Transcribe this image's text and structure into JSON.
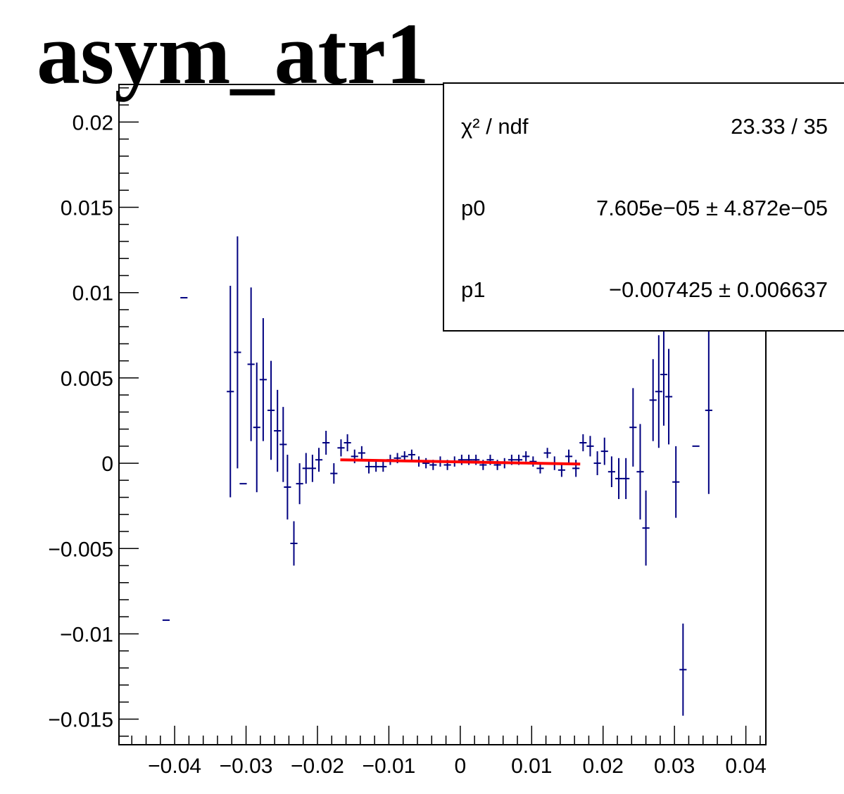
{
  "chart_data": {
    "type": "scatter",
    "title": "asym_atr1",
    "xlabel": "",
    "ylabel": "",
    "xlim": [
      -0.0478,
      0.0428
    ],
    "ylim": [
      -0.0165,
      0.0222
    ],
    "x_ticks": [
      -0.04,
      -0.03,
      -0.02,
      -0.01,
      0,
      0.01,
      0.02,
      0.03,
      0.04
    ],
    "x_tick_labels": [
      "−0.04",
      "−0.03",
      "−0.02",
      "−0.01",
      "0",
      "0.01",
      "0.02",
      "0.03",
      "0.04"
    ],
    "y_ticks": [
      -0.015,
      -0.01,
      -0.005,
      0,
      0.005,
      0.01,
      0.015,
      0.02
    ],
    "y_tick_labels": [
      "−0.015",
      "−0.01",
      "−0.005",
      "0",
      "0.005",
      "0.01",
      "0.015",
      "0.02"
    ],
    "bin_width": 0.001,
    "grid": false,
    "colors": {
      "points": "#000080",
      "fit": "#ff0000",
      "axes": "#000000",
      "background": "#ffffff"
    },
    "series": [
      {
        "points": [
          {
            "x": -0.0412,
            "y": -0.0092,
            "ey": 0
          },
          {
            "x": -0.0387,
            "y": 0.0097,
            "ey": 0
          },
          {
            "x": -0.0322,
            "y": 0.0042,
            "ey": 0.0062
          },
          {
            "x": -0.0312,
            "y": 0.0065,
            "ey": 0.0068
          },
          {
            "x": -0.0304,
            "y": -0.0012,
            "ey": 0
          },
          {
            "x": -0.0293,
            "y": 0.0058,
            "ey": 0.0045
          },
          {
            "x": -0.0285,
            "y": 0.0021,
            "ey": 0.0038
          },
          {
            "x": -0.0276,
            "y": 0.0049,
            "ey": 0.0036
          },
          {
            "x": -0.0265,
            "y": 0.0031,
            "ey": 0.0029
          },
          {
            "x": -0.0256,
            "y": 0.0019,
            "ey": 0.0024
          },
          {
            "x": -0.0248,
            "y": 0.0011,
            "ey": 0.0022
          },
          {
            "x": -0.0242,
            "y": -0.0014,
            "ey": 0.0019
          },
          {
            "x": -0.0233,
            "y": -0.0047,
            "ey": 0.0013
          },
          {
            "x": -0.0225,
            "y": -0.0012,
            "ey": 0.0012
          },
          {
            "x": -0.0216,
            "y": -0.0003,
            "ey": 0.0009
          },
          {
            "x": -0.0207,
            "y": -0.0003,
            "ey": 0.0008
          },
          {
            "x": -0.0198,
            "y": 0.0002,
            "ey": 0.0007
          },
          {
            "x": -0.0188,
            "y": 0.0012,
            "ey": 0.0007
          },
          {
            "x": -0.0177,
            "y": -0.0006,
            "ey": 0.0006
          },
          {
            "x": -0.0167,
            "y": 0.0009,
            "ey": 0.0005
          },
          {
            "x": -0.0158,
            "y": 0.0012,
            "ey": 0.0005
          },
          {
            "x": -0.0148,
            "y": 0.0004,
            "ey": 0.0004
          },
          {
            "x": -0.0138,
            "y": 0.0006,
            "ey": 0.0004
          },
          {
            "x": -0.0128,
            "y": -0.0002,
            "ey": 0.0004
          },
          {
            "x": -0.0118,
            "y": -0.0002,
            "ey": 0.0003
          },
          {
            "x": -0.0108,
            "y": -0.0002,
            "ey": 0.0003
          },
          {
            "x": -0.0098,
            "y": 0.0002,
            "ey": 0.0003
          },
          {
            "x": -0.0088,
            "y": 0.0003,
            "ey": 0.0003
          },
          {
            "x": -0.0078,
            "y": 0.0004,
            "ey": 0.0003
          },
          {
            "x": -0.0068,
            "y": 0.0005,
            "ey": 0.0003
          },
          {
            "x": -0.0058,
            "y": 0.0001,
            "ey": 0.0003
          },
          {
            "x": -0.0048,
            "y": 0.0,
            "ey": 0.0003
          },
          {
            "x": -0.0038,
            "y": -0.0001,
            "ey": 0.0003
          },
          {
            "x": -0.0028,
            "y": 0.0001,
            "ey": 0.0003
          },
          {
            "x": -0.0018,
            "y": -0.0001,
            "ey": 0.0003
          },
          {
            "x": -0.0008,
            "y": 0.0001,
            "ey": 0.0003
          },
          {
            "x": 0.0002,
            "y": 0.0002,
            "ey": 0.0003
          },
          {
            "x": 0.0012,
            "y": 0.0002,
            "ey": 0.0003
          },
          {
            "x": 0.0022,
            "y": 0.0002,
            "ey": 0.0003
          },
          {
            "x": 0.0032,
            "y": -0.0001,
            "ey": 0.0003
          },
          {
            "x": 0.0042,
            "y": 0.0002,
            "ey": 0.0003
          },
          {
            "x": 0.0052,
            "y": -0.0001,
            "ey": 0.0003
          },
          {
            "x": 0.0062,
            "y": 0.0,
            "ey": 0.0003
          },
          {
            "x": 0.0072,
            "y": 0.0002,
            "ey": 0.0003
          },
          {
            "x": 0.0082,
            "y": 0.0002,
            "ey": 0.0003
          },
          {
            "x": 0.0092,
            "y": 0.0004,
            "ey": 0.0003
          },
          {
            "x": 0.0102,
            "y": 0.0001,
            "ey": 0.0003
          },
          {
            "x": 0.0112,
            "y": -0.0003,
            "ey": 0.0003
          },
          {
            "x": 0.0122,
            "y": 0.0006,
            "ey": 0.0003
          },
          {
            "x": 0.0132,
            "y": 0.0,
            "ey": 0.0004
          },
          {
            "x": 0.0142,
            "y": -0.0004,
            "ey": 0.0004
          },
          {
            "x": 0.0152,
            "y": 0.0004,
            "ey": 0.0004
          },
          {
            "x": 0.0162,
            "y": -0.0003,
            "ey": 0.0005
          },
          {
            "x": 0.0172,
            "y": 0.0012,
            "ey": 0.0005
          },
          {
            "x": 0.0182,
            "y": 0.001,
            "ey": 0.0006
          },
          {
            "x": 0.0192,
            "y": 0.0,
            "ey": 0.0007
          },
          {
            "x": 0.0202,
            "y": 0.0007,
            "ey": 0.0008
          },
          {
            "x": 0.0212,
            "y": -0.0005,
            "ey": 0.0009
          },
          {
            "x": 0.0222,
            "y": -0.0009,
            "ey": 0.0012
          },
          {
            "x": 0.0232,
            "y": -0.0009,
            "ey": 0.0012
          },
          {
            "x": 0.0242,
            "y": 0.0021,
            "ey": 0.0023
          },
          {
            "x": 0.0252,
            "y": -0.0005,
            "ey": 0.0028
          },
          {
            "x": 0.026,
            "y": -0.0038,
            "ey": 0.0022
          },
          {
            "x": 0.027,
            "y": 0.0037,
            "ey": 0.0024
          },
          {
            "x": 0.0278,
            "y": 0.0042,
            "ey": 0.0033
          },
          {
            "x": 0.0285,
            "y": 0.0052,
            "ey": 0.003
          },
          {
            "x": 0.0292,
            "y": 0.0039,
            "ey": 0.0028
          },
          {
            "x": 0.0302,
            "y": -0.0011,
            "ey": 0.0021
          },
          {
            "x": 0.0312,
            "y": -0.0121,
            "ey": 0.0027
          },
          {
            "x": 0.033,
            "y": 0.001,
            "ey": 0
          },
          {
            "x": 0.0348,
            "y": 0.0031,
            "ey": 0.0049
          }
        ]
      }
    ],
    "fit": {
      "type": "line",
      "x_range": [
        -0.0168,
        0.0168
      ],
      "p0": 7.605e-05,
      "p1": -0.007425
    },
    "stats_box": {
      "rows": [
        {
          "label": "χ² / ndf",
          "value": "23.33 / 35"
        },
        {
          "label": "p0",
          "value": "7.605e−05 ± 4.872e−05"
        },
        {
          "label": "p1",
          "value": "−0.007425 ± 0.006637"
        }
      ]
    }
  }
}
